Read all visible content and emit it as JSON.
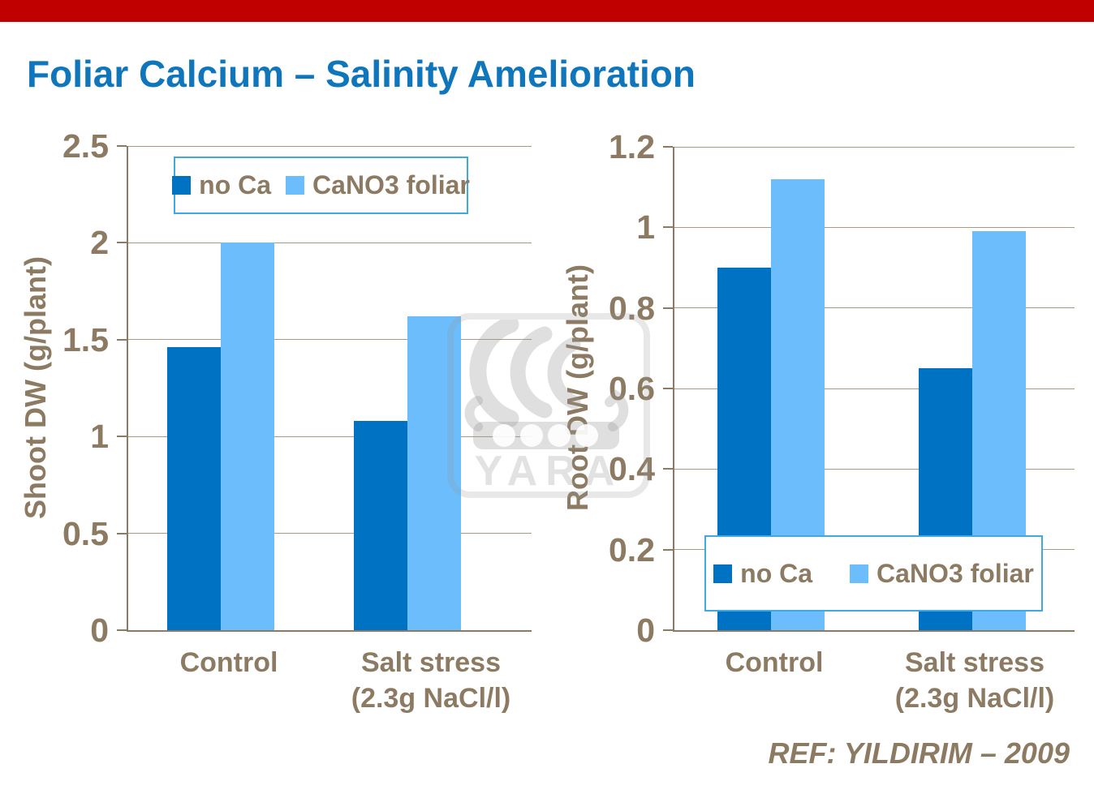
{
  "page": {
    "title": "Foliar Calcium – Salinity Amelioration",
    "reference": "REF: YILDIRIM – 2009",
    "watermark": "YARA"
  },
  "colors": {
    "accent_bar": "#C00000",
    "title_blue": "#0F76BC",
    "series_dark": "#0072C4",
    "series_light": "#6CBDFB",
    "axis_text": "#8C7B62",
    "gridline": "#A89B85",
    "legend_border": "#3FA9E2"
  },
  "chart_data": [
    {
      "type": "bar",
      "title": "",
      "xlabel": "",
      "ylabel": "Shoot DW (g/plant)",
      "ylim": [
        0,
        2.5
      ],
      "ytick_values": [
        0,
        0.5,
        1,
        1.5,
        2,
        2.5
      ],
      "ytick_labels": [
        "0",
        "0.5",
        "1",
        "1.5",
        "2",
        "2.5"
      ],
      "grid": true,
      "legend_position": "top-inside",
      "categories": [
        "Control",
        "Salt stress\n(2.3g NaCl/l)"
      ],
      "series": [
        {
          "name": "no Ca",
          "values": [
            1.46,
            1.08
          ]
        },
        {
          "name": "CaNO3 foliar",
          "values": [
            2.0,
            1.62
          ]
        }
      ]
    },
    {
      "type": "bar",
      "title": "",
      "xlabel": "",
      "ylabel": "Root DW (g/plant)",
      "ylim": [
        0,
        1.2
      ],
      "ytick_values": [
        0,
        0.2,
        0.4,
        0.6,
        0.8,
        1,
        1.2
      ],
      "ytick_labels": [
        "0",
        "0.2",
        "0.4",
        "0.6",
        "0.8",
        "1",
        "1.2"
      ],
      "grid": true,
      "legend_position": "bottom-inside",
      "categories": [
        "Control",
        "Salt stress\n(2.3g NaCl/l)"
      ],
      "series": [
        {
          "name": "no Ca",
          "values": [
            0.9,
            0.65
          ]
        },
        {
          "name": "CaNO3 foliar",
          "values": [
            1.12,
            0.99
          ]
        }
      ]
    }
  ]
}
